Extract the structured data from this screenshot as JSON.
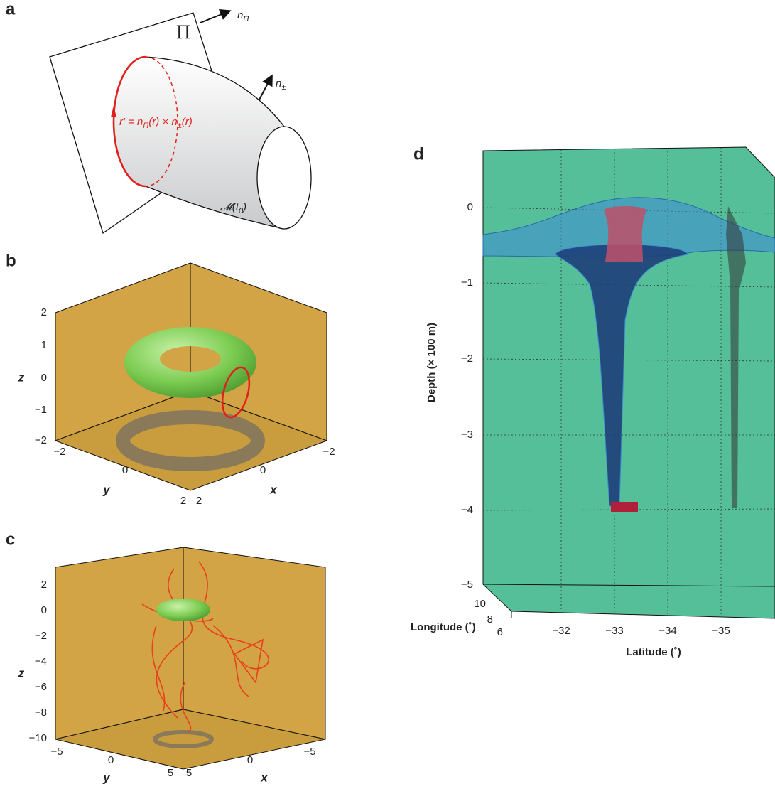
{
  "panels": {
    "a": {
      "label": "a",
      "plane": "Π",
      "plane_normal": [
        "n",
        "Π"
      ],
      "surface_normal": [
        "n",
        "±"
      ],
      "equation": [
        "r′ = n",
        "Π",
        "(r) × n",
        "±",
        "(r)"
      ],
      "manifold": [
        "𝓜(t",
        "0",
        ")"
      ]
    },
    "b": {
      "label": "b",
      "z_label": "z",
      "y_label": "y",
      "x_label": "x",
      "z_ticks": [
        "2",
        "1",
        "0",
        "−1",
        "−2"
      ],
      "y_ticks": [
        "−2",
        "0",
        "2"
      ],
      "x_ticks": [
        "2",
        "0",
        "−2"
      ]
    },
    "c": {
      "label": "c",
      "z_label": "z",
      "y_label": "y",
      "x_label": "x",
      "z_ticks": [
        "2",
        "0",
        "−2",
        "−4",
        "−6",
        "−8",
        "−10"
      ],
      "y_ticks": [
        "−5",
        "0",
        "5"
      ],
      "x_ticks": [
        "5",
        "0",
        "−5"
      ]
    },
    "d": {
      "label": "d",
      "depth_label": "Depth (× 100 m)",
      "depth_ticks": [
        "0",
        "−1",
        "−2",
        "−3",
        "−4",
        "−5"
      ],
      "longitude_label": "Longitude (˚)",
      "longitude_ticks": [
        "10",
        "8",
        "6"
      ],
      "latitude_label": "Latitude (˚)",
      "latitude_ticks": [
        "−32",
        "−33",
        "−34",
        "−35"
      ]
    }
  }
}
